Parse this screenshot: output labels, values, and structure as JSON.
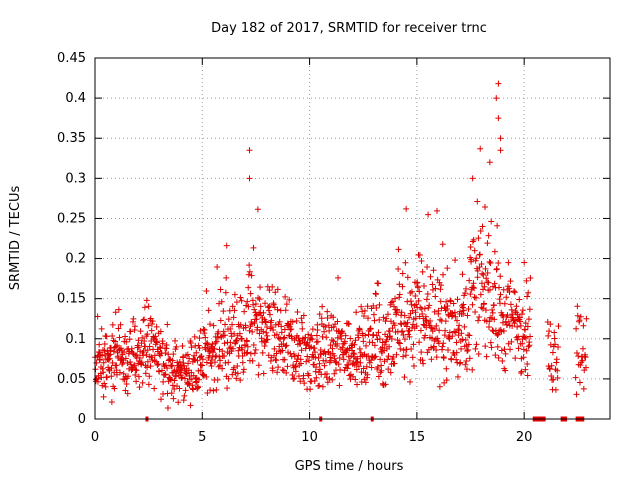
{
  "chart_data": {
    "type": "scatter",
    "title": "Day 182 of 2017, SRMTID for receiver trnc",
    "xlabel": "GPS time / hours",
    "ylabel": "SRMTID / TECUs",
    "xlim": [
      0,
      24
    ],
    "ylim": [
      0,
      0.45
    ],
    "xticks": [
      0,
      5,
      10,
      15,
      20
    ],
    "yticks": [
      0,
      0.05,
      0.1,
      0.15,
      0.2,
      0.25,
      0.3,
      0.35,
      0.4,
      0.45
    ],
    "ytick_labels": [
      "0",
      "0.05",
      "0.1",
      "0.15",
      "0.2",
      "0.25",
      "0.3",
      "0.35",
      "0.4",
      "0.45"
    ],
    "grid": true,
    "marker": "+",
    "color": "#e00000",
    "series": [
      {
        "name": "SRMTID",
        "profile_hours": [
          0,
          1,
          2,
          2.5,
          3,
          3.5,
          4,
          4.5,
          5,
          5.5,
          6,
          6.5,
          7,
          7.3,
          7.6,
          8,
          9,
          10,
          11,
          12,
          13,
          14,
          14.5,
          15,
          16,
          17,
          17.5,
          18,
          18.5,
          19,
          19.5,
          20,
          20.3
        ],
        "profile_median_tecu": [
          0.065,
          0.07,
          0.075,
          0.09,
          0.075,
          0.06,
          0.055,
          0.06,
          0.075,
          0.085,
          0.09,
          0.1,
          0.1,
          0.13,
          0.11,
          0.1,
          0.09,
          0.08,
          0.085,
          0.085,
          0.09,
          0.1,
          0.12,
          0.13,
          0.12,
          0.11,
          0.15,
          0.17,
          0.14,
          0.12,
          0.12,
          0.12,
          0.11
        ],
        "cluster_hours": [
          [
            21.1,
            21.6
          ],
          [
            22.4,
            22.9
          ]
        ],
        "cluster_median_tecu": [
          0.08,
          0.09
        ],
        "peaks": [
          {
            "x": 7.2,
            "y": 0.335
          },
          {
            "x": 7.2,
            "y": 0.3
          },
          {
            "x": 14.5,
            "y": 0.262
          },
          {
            "x": 17.6,
            "y": 0.3
          },
          {
            "x": 18.8,
            "y": 0.418
          },
          {
            "x": 18.7,
            "y": 0.4
          },
          {
            "x": 18.8,
            "y": 0.375
          },
          {
            "x": 18.9,
            "y": 0.35
          },
          {
            "x": 18.9,
            "y": 0.335
          },
          {
            "x": 18.4,
            "y": 0.32
          }
        ]
      }
    ],
    "data_gaps_hours": [
      [
        2.35,
        2.45
      ],
      [
        10.45,
        10.55
      ],
      [
        12.85,
        12.95
      ],
      [
        20.4,
        21.0
      ],
      [
        21.7,
        22.0
      ],
      [
        22.4,
        22.8
      ]
    ]
  }
}
